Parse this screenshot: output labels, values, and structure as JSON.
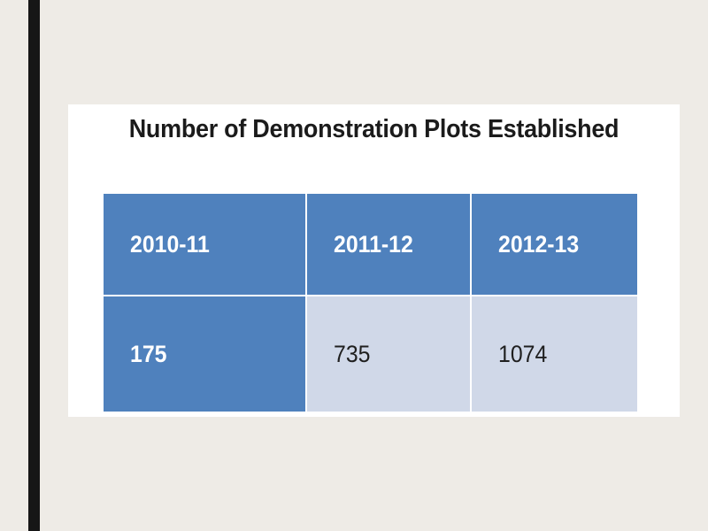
{
  "colors": {
    "background": "#eeebe6",
    "left_bar": "#161616",
    "header_fill": "#4f81bd",
    "cell_fill": "#d0d8e8"
  },
  "chart_data": {
    "type": "table",
    "title": "Number of Demonstration Plots Established",
    "columns": [
      "2010-11",
      "2011-12",
      "2012-13"
    ],
    "rows": [
      [
        "175",
        "735",
        "1074"
      ]
    ]
  }
}
